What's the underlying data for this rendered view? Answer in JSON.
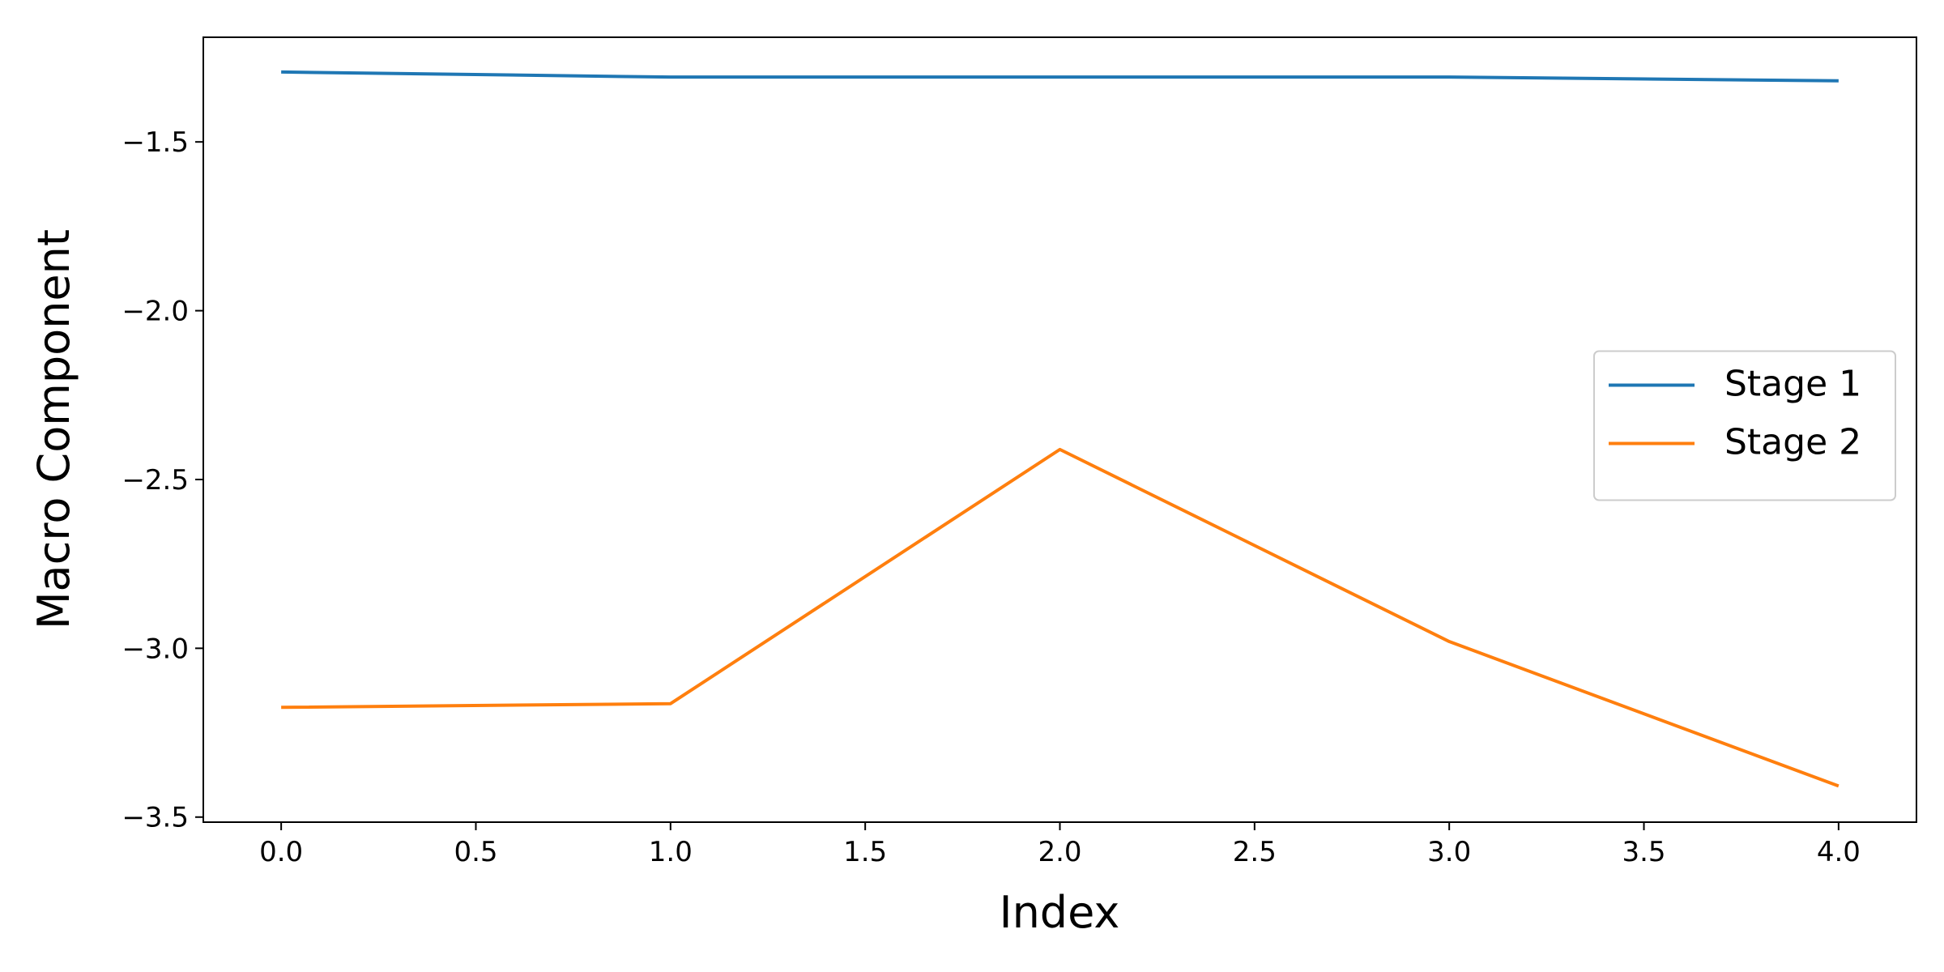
{
  "chart_data": {
    "type": "line",
    "x_label": "Index",
    "y_label": "Macro Component",
    "x": [
      0,
      1,
      2,
      3,
      4
    ],
    "series": [
      {
        "name": "Stage 1",
        "color": "#1f77b4",
        "values": [
          -1.293,
          -1.308,
          -1.308,
          -1.308,
          -1.319
        ]
      },
      {
        "name": "Stage 2",
        "color": "#ff7f0e",
        "values": [
          -3.175,
          -3.164,
          -2.411,
          -2.98,
          -3.408
        ]
      }
    ],
    "xlim": [
      -0.2,
      4.2
    ],
    "xticks": [
      {
        "value": 0,
        "label": "0.0"
      },
      {
        "value": 0.5,
        "label": "0.5"
      },
      {
        "value": 1,
        "label": "1.0"
      },
      {
        "value": 1.5,
        "label": "1.5"
      },
      {
        "value": 2,
        "label": "2.0"
      },
      {
        "value": 2.5,
        "label": "2.5"
      },
      {
        "value": 3,
        "label": "3.0"
      },
      {
        "value": 3.5,
        "label": "3.5"
      },
      {
        "value": 4,
        "label": "4.0"
      }
    ],
    "ylim": [
      -3.515,
      -1.19
    ],
    "yticks": [
      {
        "value": -3.5,
        "label": "−3.5"
      },
      {
        "value": -3,
        "label": "−3.0"
      },
      {
        "value": -2.5,
        "label": "−2.5"
      },
      {
        "value": -2,
        "label": "−2.0"
      },
      {
        "value": -1.5,
        "label": "−1.5"
      }
    ],
    "legend": "center right",
    "grid": false
  }
}
